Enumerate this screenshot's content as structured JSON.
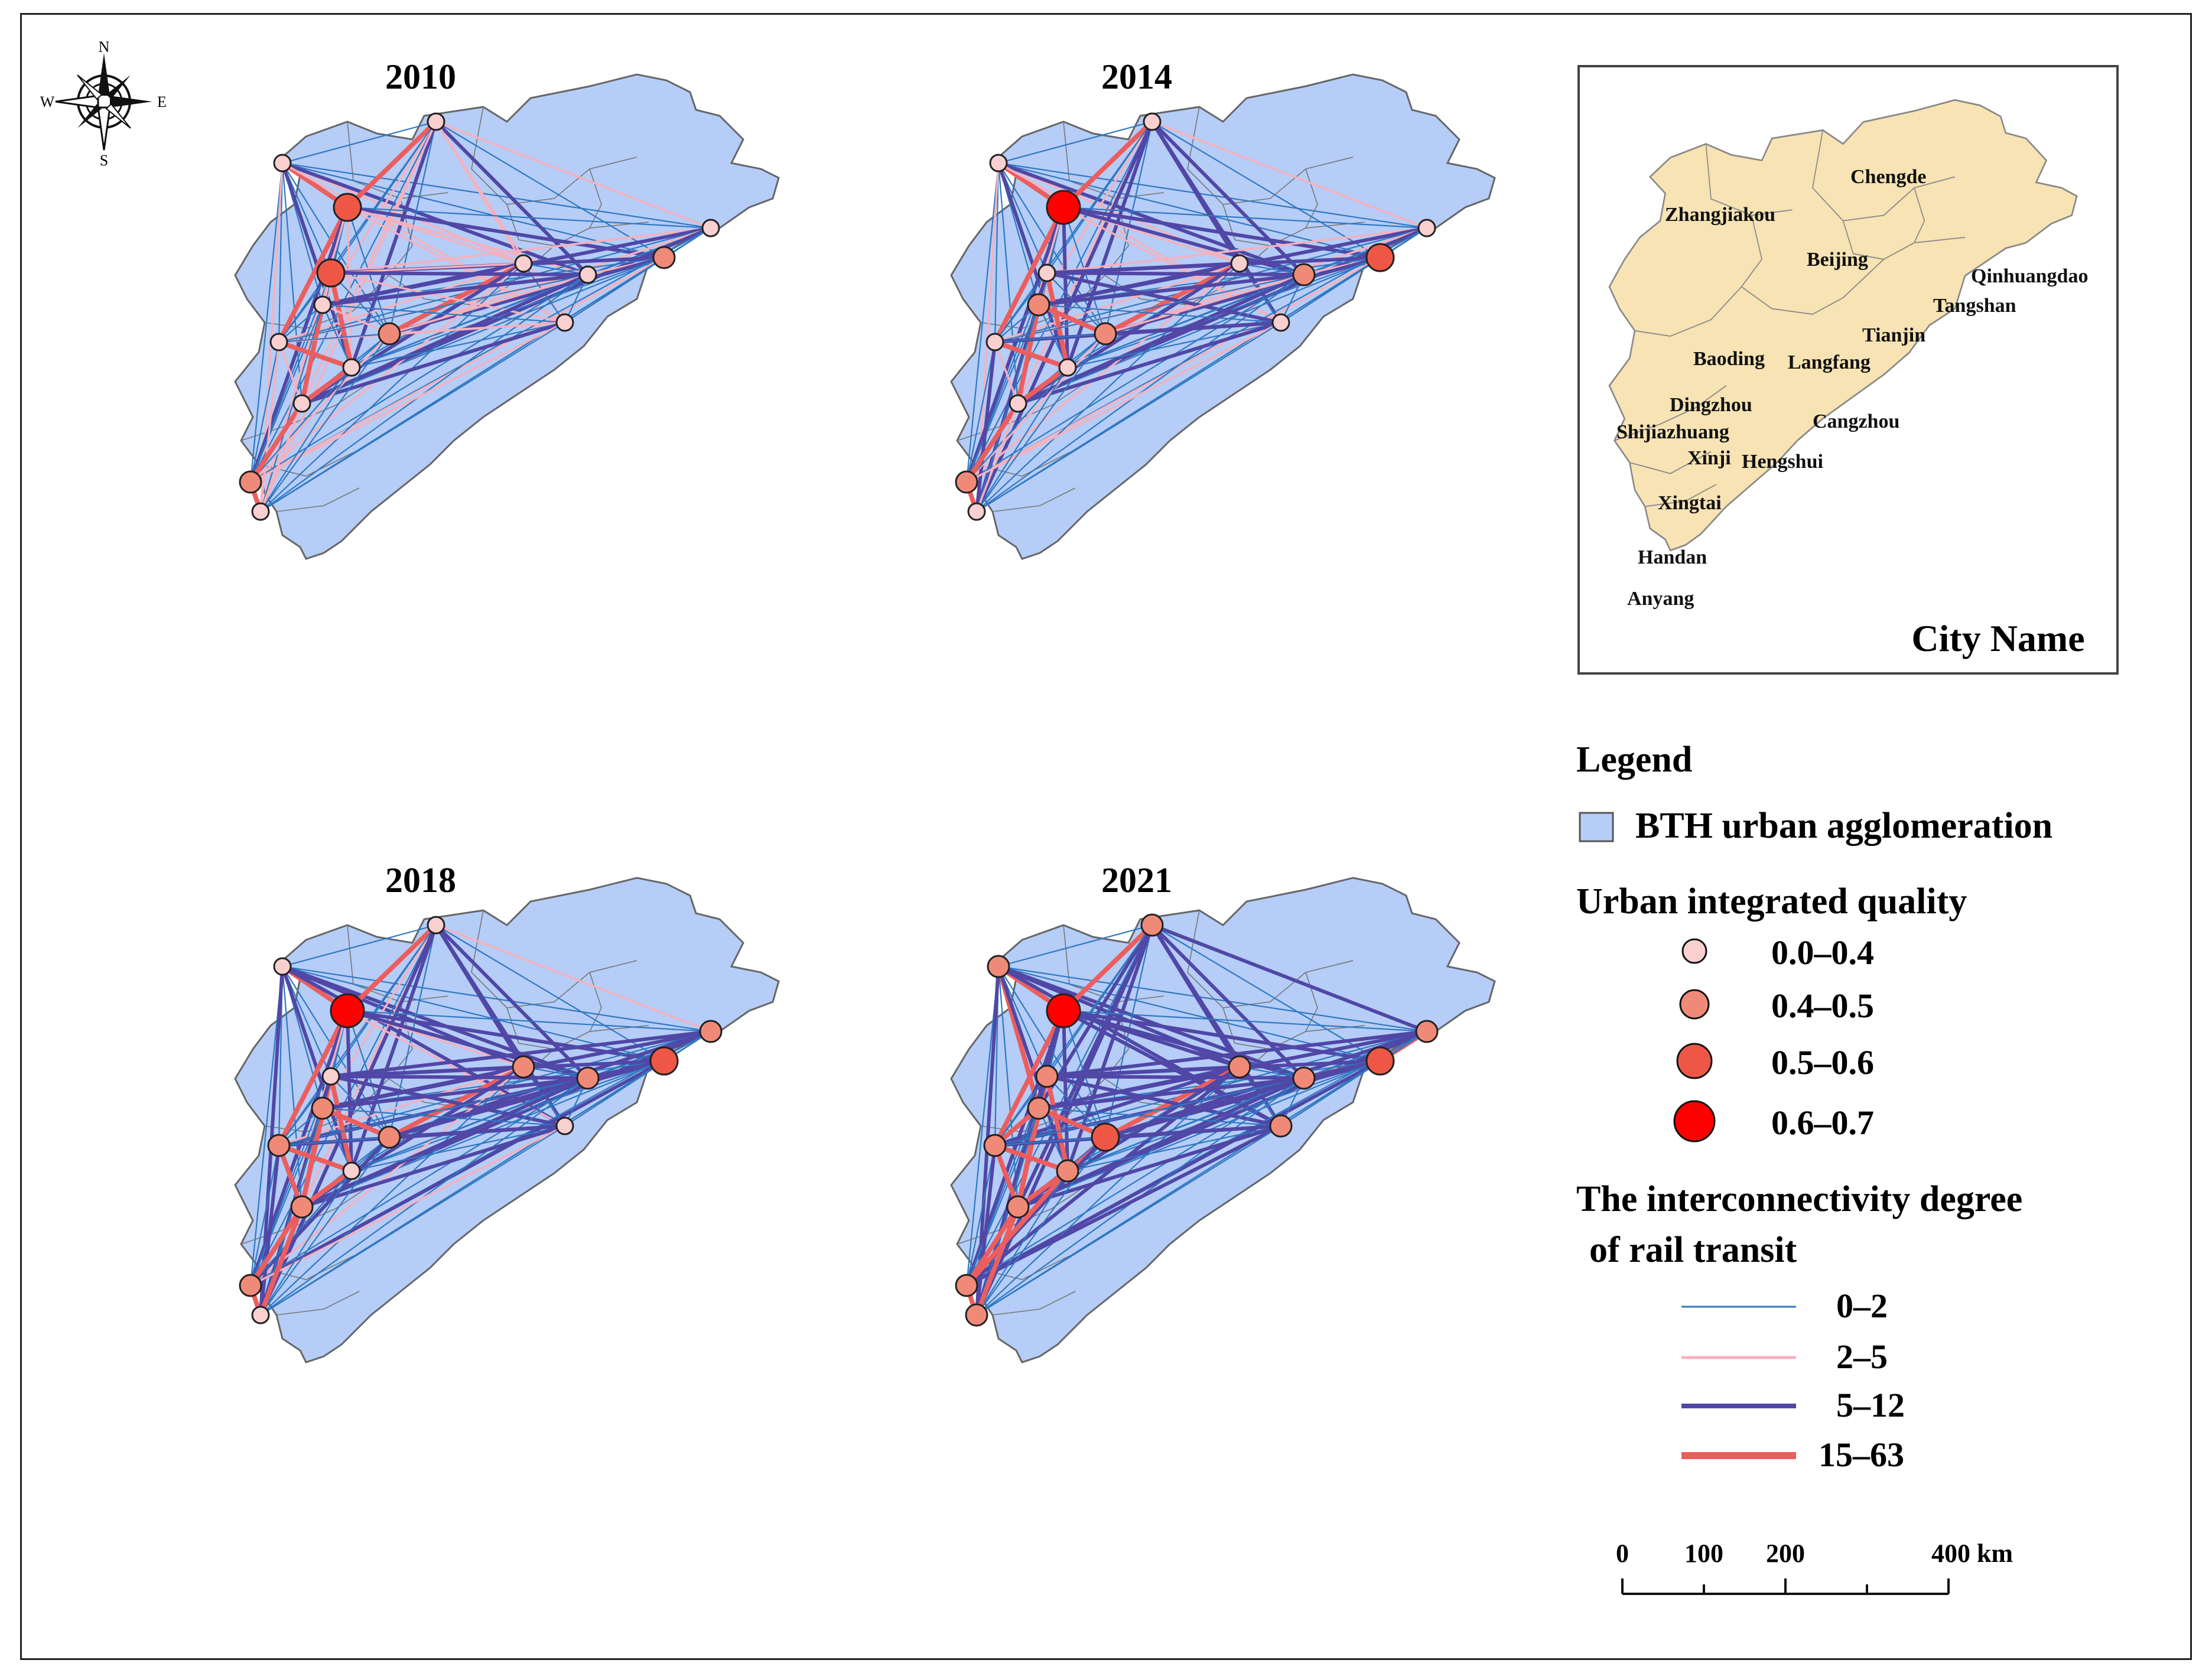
{
  "panels": [
    {
      "year": "2010"
    },
    {
      "year": "2014"
    },
    {
      "year": "2018"
    },
    {
      "year": "2021"
    }
  ],
  "compass": {
    "n": "N",
    "s": "S",
    "e": "E",
    "w": "W"
  },
  "inset": {
    "title": "City Name",
    "cities": [
      "Zhangjiakou",
      "Chengde",
      "Beijing",
      "Qinhuangdao",
      "Tangshan",
      "Tianjin",
      "Baoding",
      "Langfang",
      "Dingzhou",
      "Shijiazhuang",
      "Cangzhou",
      "Xinji",
      "Hengshui",
      "Xingtai",
      "Handan",
      "Anyang"
    ]
  },
  "legend": {
    "title": "Legend",
    "region_label": "BTH urban agglomeration",
    "quality_title": "Urban integrated quality",
    "quality_classes": [
      "0.0–0.4",
      "0.4–0.5",
      "0.5–0.6",
      "0.6–0.7"
    ],
    "rail_title_1": "The interconnectivity degree",
    "rail_title_2": "of rail transit",
    "rail_classes": [
      "0–2",
      "2–5",
      "5–12",
      "15–63"
    ]
  },
  "scale_bar": {
    "ticks": [
      "0",
      "100",
      "200",
      "400 km"
    ]
  },
  "colors": {
    "region_fill": "#b5cdf7",
    "inset_fill": "#f7e3b3",
    "q1": "#f9cfcf",
    "q2": "#f08a78",
    "q3": "#ee5746",
    "q4": "#ff0000",
    "l1": "#2f78c2",
    "l2": "#f7b0bc",
    "l3": "#5047a6",
    "l4": "#ec5e5e"
  },
  "node_classes": {
    "2010": [
      1,
      1,
      3,
      1,
      2,
      1,
      3,
      1,
      1,
      1,
      1,
      2,
      1,
      1,
      2,
      1
    ],
    "2014": [
      1,
      1,
      4,
      1,
      3,
      1,
      1,
      2,
      2,
      1,
      1,
      2,
      1,
      1,
      2,
      1
    ],
    "2018": [
      1,
      1,
      4,
      2,
      3,
      2,
      1,
      2,
      2,
      2,
      1,
      2,
      1,
      2,
      2,
      1
    ],
    "2021": [
      2,
      2,
      4,
      2,
      3,
      2,
      2,
      2,
      2,
      2,
      2,
      3,
      2,
      2,
      2,
      2
    ]
  }
}
